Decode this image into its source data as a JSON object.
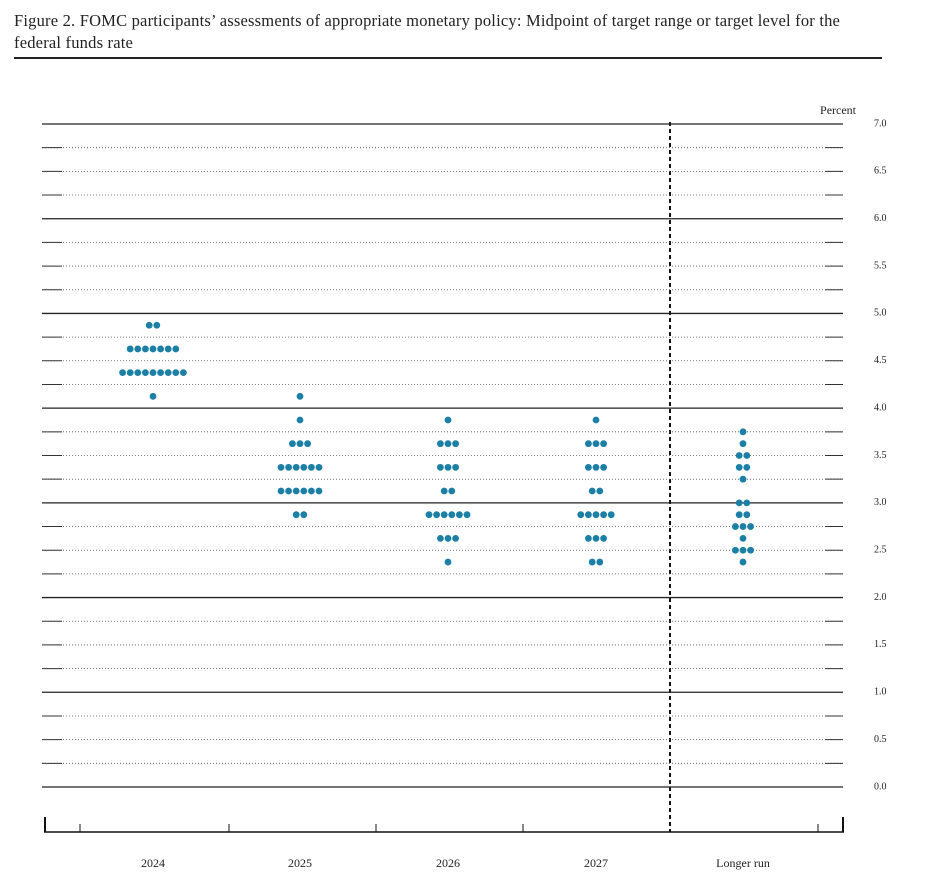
{
  "chart_data": {
    "type": "dot",
    "title": "Figure 2.  FOMC participants’ assessments of appropriate monetary policy: Midpoint of target range or target level for the federal funds rate",
    "y_label": "Percent",
    "categories": [
      "2024",
      "2025",
      "2026",
      "2027",
      "Longer run"
    ],
    "color": "#1b7fa6",
    "values": [
      [
        4.875,
        4.875,
        4.625,
        4.625,
        4.625,
        4.625,
        4.625,
        4.625,
        4.625,
        4.375,
        4.375,
        4.375,
        4.375,
        4.375,
        4.375,
        4.375,
        4.375,
        4.375,
        4.125
      ],
      [
        4.125,
        3.875,
        3.625,
        3.625,
        3.625,
        3.375,
        3.375,
        3.375,
        3.375,
        3.375,
        3.375,
        3.125,
        3.125,
        3.125,
        3.125,
        3.125,
        3.125,
        2.875,
        2.875
      ],
      [
        3.875,
        3.625,
        3.625,
        3.625,
        3.375,
        3.375,
        3.375,
        3.125,
        3.125,
        2.875,
        2.875,
        2.875,
        2.875,
        2.875,
        2.875,
        2.625,
        2.625,
        2.625,
        2.375
      ],
      [
        3.875,
        3.625,
        3.625,
        3.625,
        3.375,
        3.375,
        3.375,
        3.125,
        3.125,
        2.875,
        2.875,
        2.875,
        2.875,
        2.875,
        2.625,
        2.625,
        2.625,
        2.375,
        2.375
      ],
      [
        3.75,
        3.625,
        3.5,
        3.5,
        3.375,
        3.375,
        3.25,
        3.0,
        3.0,
        2.875,
        2.875,
        2.75,
        2.75,
        2.75,
        2.625,
        2.5,
        2.5,
        2.5,
        2.375
      ]
    ],
    "ylim": [
      0,
      7
    ],
    "yticks": [
      {
        "value": 0,
        "label": "0.0"
      },
      {
        "value": 0.5,
        "label": "0.5"
      },
      {
        "value": 1,
        "label": "1.0"
      },
      {
        "value": 1.5,
        "label": "1.5"
      },
      {
        "value": 2,
        "label": "2.0"
      },
      {
        "value": 2.5,
        "label": "2.5"
      },
      {
        "value": 3,
        "label": "3.0"
      },
      {
        "value": 3.5,
        "label": "3.5"
      },
      {
        "value": 4,
        "label": "4.0"
      },
      {
        "value": 4.5,
        "label": "4.5"
      },
      {
        "value": 5,
        "label": "5.0"
      },
      {
        "value": 5.5,
        "label": "5.5"
      },
      {
        "value": 6,
        "label": "6.0"
      },
      {
        "value": 6.5,
        "label": "6.5"
      },
      {
        "value": 7,
        "label": "7.0"
      }
    ],
    "grid": true
  }
}
